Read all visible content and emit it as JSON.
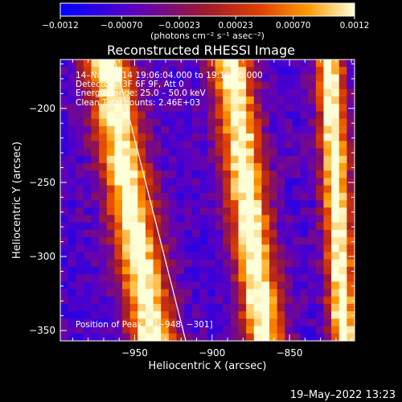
{
  "chart_data": {
    "type": "heatmap",
    "title": "Reconstructed RHESSI Image",
    "xlabel": "Heliocentric X (arcsec)",
    "ylabel": "Heliocentric Y (arcsec)",
    "xlim": [
      -998,
      -808
    ],
    "ylim": [
      -357,
      -167
    ],
    "xticks": [
      -950,
      -900,
      -850
    ],
    "xtick_labels": [
      "−950",
      "−900",
      "−850"
    ],
    "yticks": [
      -200,
      -250,
      -300,
      -350
    ],
    "ytick_labels": [
      "−200",
      "−250",
      "−300",
      "−350"
    ],
    "colorbar": {
      "range": [
        -0.0012,
        0.0012
      ],
      "ticks": [
        -0.0012,
        -0.0007,
        -0.00023,
        0.00023,
        0.0007,
        0.0012
      ],
      "tick_labels": [
        "−0.0012",
        "−0.00070",
        "−0.00023",
        "0.00023",
        "0.00070",
        "0.0012"
      ],
      "units_label": "(photons cm⁻² s⁻¹ asec⁻²)"
    },
    "annotations": [
      "14–Nov–2014 19:06:04.000 to 19:10:16.000",
      "Detectors: 3F 6F 9F, Att 0",
      "Energy Range: 25.0 – 50.0 keV",
      "Clean    Total counts: 2.46E+03"
    ],
    "peak_label": "Position of Peak = [−948, −301]",
    "peak_position": [
      -948,
      -301
    ],
    "bright_stripes": [
      {
        "x_top": -968,
        "x_bottom": -938
      },
      {
        "x_top": -888,
        "x_bottom": -866
      },
      {
        "x_top": -824,
        "x_bottom": -815
      }
    ],
    "limb_line": {
      "x_top": -963,
      "y_top": -167,
      "x_bottom": -917,
      "y_bottom": -357
    }
  },
  "footer": {
    "date": "19–May–2022 13:23"
  }
}
